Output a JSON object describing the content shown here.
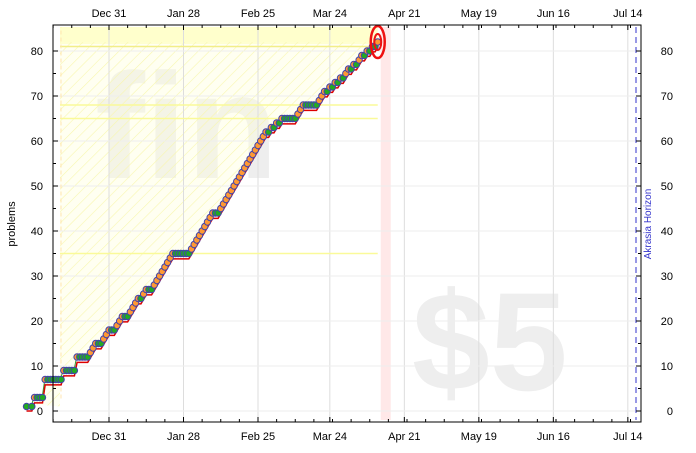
{
  "chart_data": {
    "type": "line",
    "title": "",
    "ylabel": "problems",
    "xlabel": "",
    "ylim": [
      0,
      85
    ],
    "xlim_days": [
      0,
      212
    ],
    "grid": true,
    "x_ticks": [
      {
        "label": "Dec 31",
        "day": 34
      },
      {
        "label": "Jan 28",
        "day": 62
      },
      {
        "label": "Feb 25",
        "day": 90
      },
      {
        "label": "Mar 24",
        "day": 117
      },
      {
        "label": "Apr 21",
        "day": 145
      },
      {
        "label": "May 19",
        "day": 173
      },
      {
        "label": "Jun 16",
        "day": 201
      },
      {
        "label": "Jul 14",
        "day": 229
      }
    ],
    "y_ticks": [
      0,
      10,
      20,
      30,
      40,
      50,
      60,
      70,
      80
    ],
    "watermarks": [
      "fin",
      "$5"
    ],
    "horizon_label": "Akrasia Horizon",
    "goal": 82,
    "series": [
      {
        "values_day_count": [
          [
            3,
            1
          ],
          [
            5,
            1
          ],
          [
            6,
            3
          ],
          [
            7,
            3
          ],
          [
            8,
            3
          ],
          [
            9,
            3
          ],
          [
            10,
            7
          ],
          [
            11,
            7
          ],
          [
            12,
            7
          ],
          [
            13,
            7
          ],
          [
            14,
            7
          ],
          [
            15,
            7
          ],
          [
            16,
            7
          ],
          [
            17,
            9
          ],
          [
            18,
            9
          ],
          [
            19,
            9
          ],
          [
            20,
            9
          ],
          [
            21,
            9
          ],
          [
            22,
            12
          ],
          [
            23,
            12
          ],
          [
            24,
            12
          ],
          [
            25,
            12
          ],
          [
            26,
            12
          ],
          [
            27,
            13
          ],
          [
            28,
            14
          ],
          [
            29,
            15
          ],
          [
            30,
            15
          ],
          [
            31,
            15
          ],
          [
            32,
            16
          ],
          [
            33,
            17
          ],
          [
            34,
            18
          ],
          [
            35,
            18
          ],
          [
            36,
            18
          ],
          [
            37,
            19
          ],
          [
            38,
            20
          ],
          [
            39,
            21
          ],
          [
            40,
            21
          ],
          [
            41,
            21
          ],
          [
            42,
            22
          ],
          [
            43,
            23
          ],
          [
            44,
            24
          ],
          [
            45,
            25
          ],
          [
            46,
            25
          ],
          [
            47,
            26
          ],
          [
            48,
            27
          ],
          [
            49,
            27
          ],
          [
            50,
            27
          ],
          [
            51,
            28
          ],
          [
            52,
            29
          ],
          [
            53,
            30
          ],
          [
            54,
            31
          ],
          [
            55,
            32
          ],
          [
            56,
            33
          ],
          [
            57,
            34
          ],
          [
            58,
            35
          ],
          [
            59,
            35
          ],
          [
            60,
            35
          ],
          [
            61,
            35
          ],
          [
            62,
            35
          ],
          [
            63,
            35
          ],
          [
            64,
            35
          ],
          [
            65,
            36
          ],
          [
            66,
            37
          ],
          [
            67,
            38
          ],
          [
            68,
            39
          ],
          [
            69,
            40
          ],
          [
            70,
            41
          ],
          [
            71,
            42
          ],
          [
            72,
            43
          ],
          [
            73,
            44
          ],
          [
            74,
            44
          ],
          [
            75,
            44
          ],
          [
            76,
            45
          ],
          [
            77,
            46
          ],
          [
            78,
            47
          ],
          [
            79,
            48
          ],
          [
            80,
            49
          ],
          [
            81,
            50
          ],
          [
            82,
            51
          ],
          [
            83,
            52
          ],
          [
            84,
            53
          ],
          [
            85,
            54
          ],
          [
            86,
            55
          ],
          [
            87,
            56
          ],
          [
            88,
            57
          ],
          [
            89,
            58
          ],
          [
            90,
            59
          ],
          [
            91,
            60
          ],
          [
            92,
            61
          ],
          [
            93,
            62
          ],
          [
            94,
            62
          ],
          [
            95,
            63
          ],
          [
            96,
            63
          ],
          [
            97,
            64
          ],
          [
            98,
            64
          ],
          [
            99,
            65
          ],
          [
            100,
            65
          ],
          [
            101,
            65
          ],
          [
            102,
            65
          ],
          [
            103,
            65
          ],
          [
            104,
            65
          ],
          [
            105,
            66
          ],
          [
            106,
            67
          ],
          [
            107,
            68
          ],
          [
            108,
            68
          ],
          [
            109,
            68
          ],
          [
            110,
            68
          ],
          [
            111,
            68
          ],
          [
            112,
            68
          ],
          [
            113,
            69
          ],
          [
            114,
            70
          ],
          [
            115,
            71
          ],
          [
            116,
            71
          ],
          [
            117,
            72
          ],
          [
            118,
            72
          ],
          [
            119,
            73
          ],
          [
            120,
            73
          ],
          [
            121,
            74
          ],
          [
            122,
            74
          ],
          [
            123,
            75
          ],
          [
            124,
            76
          ],
          [
            125,
            76
          ],
          [
            126,
            77
          ],
          [
            127,
            77
          ],
          [
            128,
            78
          ],
          [
            129,
            79
          ],
          [
            130,
            79
          ],
          [
            131,
            80
          ],
          [
            132,
            80
          ],
          [
            133,
            81
          ],
          [
            134,
            81
          ],
          [
            135,
            82
          ]
        ]
      }
    ]
  }
}
